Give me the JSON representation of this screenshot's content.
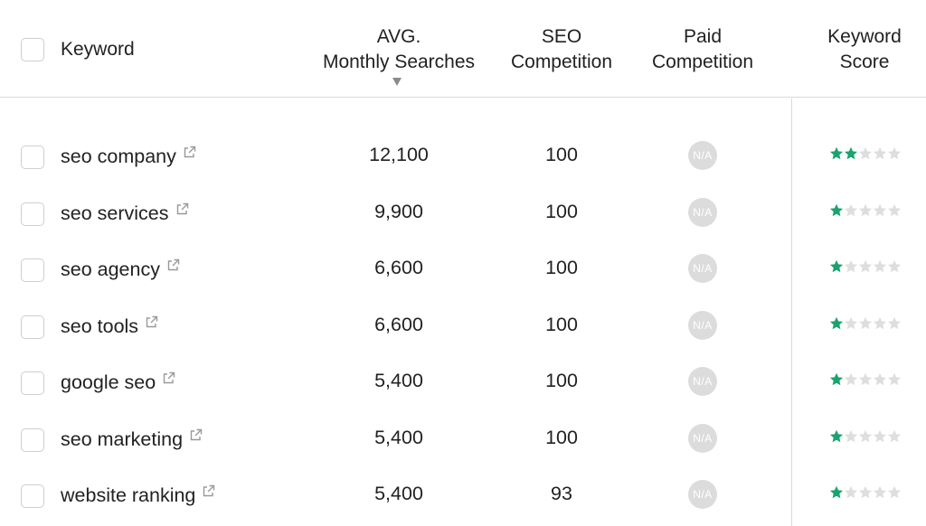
{
  "header": {
    "keyword": "Keyword",
    "avg_line1": "AVG.",
    "avg_line2": "Monthly Searches",
    "seo_line1": "SEO",
    "seo_line2": "Competition",
    "paid_line1": "Paid",
    "paid_line2": "Competition",
    "score_line1": "Keyword",
    "score_line2": "Score",
    "sort_indicator": "sort-descending-icon"
  },
  "colors": {
    "star_filled": "#1aa36f",
    "star_empty": "#dedede",
    "na_badge": "#dcdcdc",
    "border": "#d9d9d9"
  },
  "rows": [
    {
      "keyword": "seo company",
      "searches": "12,100",
      "seo_competition": "100",
      "paid_competition": "N/A",
      "score": 2,
      "max_score": 5
    },
    {
      "keyword": "seo services",
      "searches": "9,900",
      "seo_competition": "100",
      "paid_competition": "N/A",
      "score": 1,
      "max_score": 5
    },
    {
      "keyword": "seo agency",
      "searches": "6,600",
      "seo_competition": "100",
      "paid_competition": "N/A",
      "score": 1,
      "max_score": 5
    },
    {
      "keyword": "seo tools",
      "searches": "6,600",
      "seo_competition": "100",
      "paid_competition": "N/A",
      "score": 1,
      "max_score": 5
    },
    {
      "keyword": "google seo",
      "searches": "5,400",
      "seo_competition": "100",
      "paid_competition": "N/A",
      "score": 1,
      "max_score": 5
    },
    {
      "keyword": "seo marketing",
      "searches": "5,400",
      "seo_competition": "100",
      "paid_competition": "N/A",
      "score": 1,
      "max_score": 5
    },
    {
      "keyword": "website ranking",
      "searches": "5,400",
      "seo_competition": "93",
      "paid_competition": "N/A",
      "score": 1,
      "max_score": 5
    }
  ]
}
